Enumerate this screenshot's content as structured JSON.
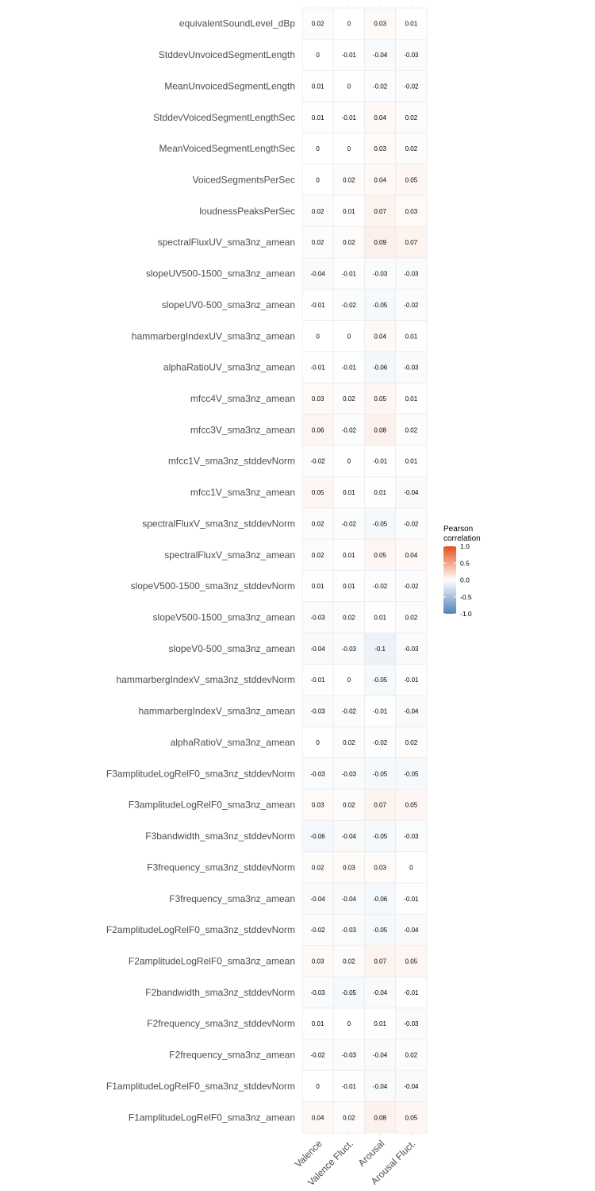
{
  "chart_data": {
    "type": "heatmap",
    "columns": [
      "Valence",
      "Valence Fluct.",
      "Arousal",
      "Arousal Fluct."
    ],
    "rows": [
      "equivalentSoundLevel_dBp",
      "StddevUnvoicedSegmentLength",
      "MeanUnvoicedSegmentLength",
      "StddevVoicedSegmentLengthSec",
      "MeanVoicedSegmentLengthSec",
      "VoicedSegmentsPerSec",
      "loudnessPeaksPerSec",
      "spectralFluxUV_sma3nz_amean",
      "slopeUV500-1500_sma3nz_amean",
      "slopeUV0-500_sma3nz_amean",
      "hammarbergIndexUV_sma3nz_amean",
      "alphaRatioUV_sma3nz_amean",
      "mfcc4V_sma3nz_amean",
      "mfcc3V_sma3nz_amean",
      "mfcc1V_sma3nz_stddevNorm",
      "mfcc1V_sma3nz_amean",
      "spectralFluxV_sma3nz_stddevNorm",
      "spectralFluxV_sma3nz_amean",
      "slopeV500-1500_sma3nz_stddevNorm",
      "slopeV500-1500_sma3nz_amean",
      "slopeV0-500_sma3nz_amean",
      "hammarbergIndexV_sma3nz_stddevNorm",
      "hammarbergIndexV_sma3nz_amean",
      "alphaRatioV_sma3nz_amean",
      "F3amplitudeLogRelF0_sma3nz_stddevNorm",
      "F3amplitudeLogRelF0_sma3nz_amean",
      "F3bandwidth_sma3nz_stddevNorm",
      "F3frequency_sma3nz_stddevNorm",
      "F3frequency_sma3nz_amean",
      "F2amplitudeLogRelF0_sma3nz_stddevNorm",
      "F2amplitudeLogRelF0_sma3nz_amean",
      "F2bandwidth_sma3nz_stddevNorm",
      "F2frequency_sma3nz_stddevNorm",
      "F2frequency_sma3nz_amean",
      "F1amplitudeLogRelF0_sma3nz_stddevNorm",
      "F1amplitudeLogRelF0_sma3nz_amean"
    ],
    "values": [
      [
        0.02,
        0,
        0.03,
        0.01
      ],
      [
        0,
        -0.01,
        -0.04,
        -0.03
      ],
      [
        0.01,
        0,
        -0.02,
        -0.02
      ],
      [
        0.01,
        -0.01,
        0.04,
        0.02
      ],
      [
        0,
        0,
        0.03,
        0.02
      ],
      [
        0,
        0.02,
        0.04,
        0.05
      ],
      [
        0.02,
        0.01,
        0.07,
        0.03
      ],
      [
        0.02,
        0.02,
        0.09,
        0.07
      ],
      [
        -0.04,
        -0.01,
        -0.03,
        -0.03
      ],
      [
        -0.01,
        -0.02,
        -0.05,
        -0.02
      ],
      [
        0,
        0,
        0.04,
        0.01
      ],
      [
        -0.01,
        -0.01,
        -0.06,
        -0.03
      ],
      [
        0.03,
        0.02,
        0.05,
        0.01
      ],
      [
        0.06,
        -0.02,
        0.08,
        0.02
      ],
      [
        -0.02,
        0,
        -0.01,
        0.01
      ],
      [
        0.05,
        0.01,
        0.01,
        -0.04
      ],
      [
        0.02,
        -0.02,
        -0.05,
        -0.02
      ],
      [
        0.02,
        0.01,
        0.05,
        0.04
      ],
      [
        0.01,
        0.01,
        -0.02,
        -0.02
      ],
      [
        -0.03,
        0.02,
        0.01,
        0.02
      ],
      [
        -0.04,
        -0.03,
        -0.1,
        -0.03
      ],
      [
        -0.01,
        0,
        -0.05,
        -0.01
      ],
      [
        -0.03,
        -0.02,
        -0.01,
        -0.04
      ],
      [
        0,
        0.02,
        -0.02,
        0.02
      ],
      [
        -0.03,
        -0.03,
        -0.05,
        -0.05
      ],
      [
        0.03,
        0.02,
        0.07,
        0.05
      ],
      [
        -0.06,
        -0.04,
        -0.05,
        -0.03
      ],
      [
        0.02,
        0.03,
        0.03,
        0
      ],
      [
        -0.04,
        -0.04,
        -0.06,
        -0.01
      ],
      [
        -0.02,
        -0.03,
        -0.05,
        -0.04
      ],
      [
        0.03,
        0.02,
        0.07,
        0.05
      ],
      [
        -0.03,
        -0.05,
        -0.04,
        -0.01
      ],
      [
        0.01,
        0,
        0.01,
        -0.03
      ],
      [
        -0.02,
        -0.03,
        -0.04,
        0.02
      ],
      [
        0,
        -0.01,
        -0.04,
        -0.04
      ],
      [
        0.04,
        0.02,
        0.08,
        0.05
      ]
    ],
    "legend": {
      "title_lines": [
        "Pearson",
        "correlation"
      ],
      "ticks": [
        1.0,
        0.5,
        0.0,
        -0.5,
        -1.0
      ],
      "tick_labels": [
        "1.0",
        "0.5",
        "0.0",
        "-0.5",
        "-1.0"
      ],
      "range": [
        -1,
        1
      ],
      "placement": "right"
    },
    "colors": {
      "positive": "#e4521b",
      "zero": "#ffffff",
      "negative": "#4f81b8",
      "grid": "#ebebeb",
      "label": "#4d4d4d",
      "value_text": "#000000"
    }
  }
}
